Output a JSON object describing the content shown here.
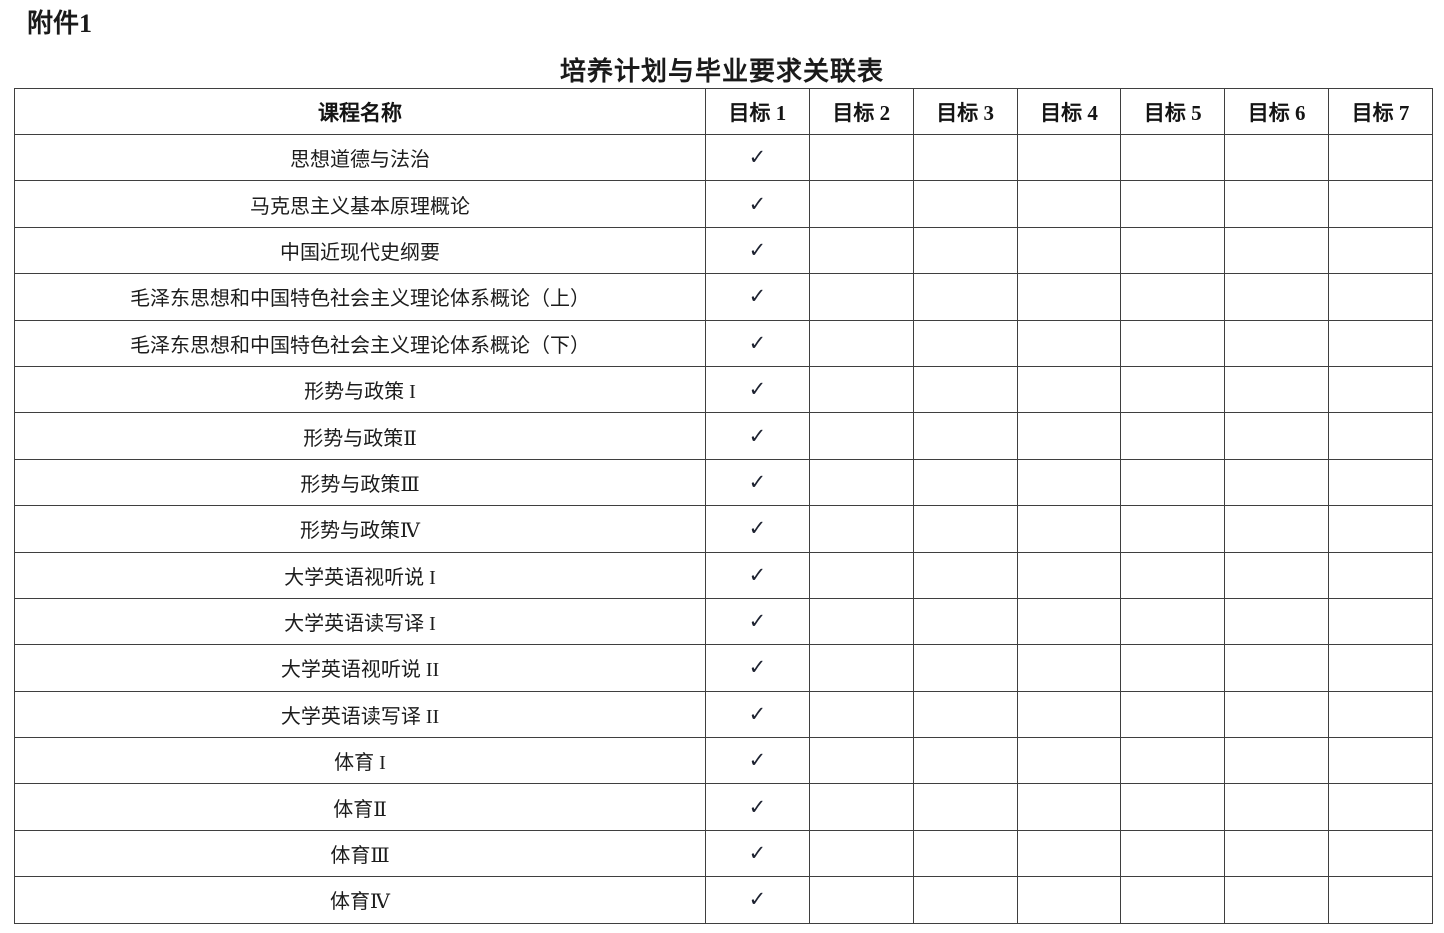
{
  "attachment": {
    "label": "附件1"
  },
  "title": "培养计划与毕业要求关联表",
  "table": {
    "columns": {
      "course": "课程名称",
      "goals": [
        "目标 1",
        "目标 2",
        "目标 3",
        "目标 4",
        "目标 5",
        "目标 6",
        "目标 7"
      ]
    },
    "check_glyph": "✓",
    "rows": [
      {
        "course": "思想道德与法治",
        "checks": [
          1,
          0,
          0,
          0,
          0,
          0,
          0
        ]
      },
      {
        "course": "马克思主义基本原理概论",
        "checks": [
          1,
          0,
          0,
          0,
          0,
          0,
          0
        ]
      },
      {
        "course": "中国近现代史纲要",
        "checks": [
          1,
          0,
          0,
          0,
          0,
          0,
          0
        ]
      },
      {
        "course": "毛泽东思想和中国特色社会主义理论体系概论（上）",
        "checks": [
          1,
          0,
          0,
          0,
          0,
          0,
          0
        ]
      },
      {
        "course": "毛泽东思想和中国特色社会主义理论体系概论（下）",
        "checks": [
          1,
          0,
          0,
          0,
          0,
          0,
          0
        ]
      },
      {
        "course": "形势与政策 I",
        "checks": [
          1,
          0,
          0,
          0,
          0,
          0,
          0
        ]
      },
      {
        "course": "形势与政策Ⅱ",
        "checks": [
          1,
          0,
          0,
          0,
          0,
          0,
          0
        ]
      },
      {
        "course": "形势与政策Ⅲ",
        "checks": [
          1,
          0,
          0,
          0,
          0,
          0,
          0
        ]
      },
      {
        "course": "形势与政策Ⅳ",
        "checks": [
          1,
          0,
          0,
          0,
          0,
          0,
          0
        ]
      },
      {
        "course": "大学英语视听说 I",
        "checks": [
          1,
          0,
          0,
          0,
          0,
          0,
          0
        ]
      },
      {
        "course": "大学英语读写译 I",
        "checks": [
          1,
          0,
          0,
          0,
          0,
          0,
          0
        ]
      },
      {
        "course": "大学英语视听说 II",
        "checks": [
          1,
          0,
          0,
          0,
          0,
          0,
          0
        ]
      },
      {
        "course": "大学英语读写译 II",
        "checks": [
          1,
          0,
          0,
          0,
          0,
          0,
          0
        ]
      },
      {
        "course": "体育 I",
        "checks": [
          1,
          0,
          0,
          0,
          0,
          0,
          0
        ]
      },
      {
        "course": "体育Ⅱ",
        "checks": [
          1,
          0,
          0,
          0,
          0,
          0,
          0
        ]
      },
      {
        "course": "体育Ⅲ",
        "checks": [
          1,
          0,
          0,
          0,
          0,
          0,
          0
        ]
      },
      {
        "course": "体育Ⅳ",
        "checks": [
          1,
          0,
          0,
          0,
          0,
          0,
          0
        ]
      }
    ]
  },
  "colors": {
    "text": "#1a1a1a",
    "border_inner": "#3f3f3f",
    "border_outer": "#7d7d7d",
    "check": "#1d2230"
  }
}
